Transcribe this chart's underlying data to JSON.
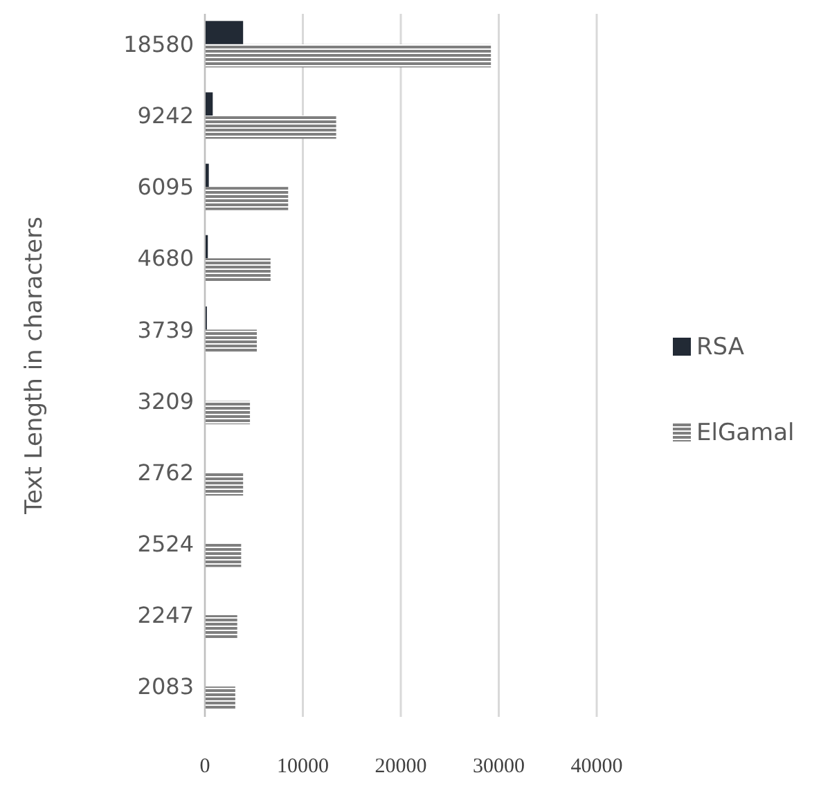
{
  "chart_data": {
    "type": "bar",
    "orientation": "horizontal",
    "ylabel": "Text Length in characters",
    "categories": [
      "18580",
      "9242",
      "6095",
      "4680",
      "3739",
      "3209",
      "2762",
      "2524",
      "2247",
      "2083"
    ],
    "series": [
      {
        "name": "RSA",
        "color": "#222a35",
        "values": [
          3900,
          800,
          400,
          300,
          200,
          null,
          null,
          null,
          null,
          null
        ]
      },
      {
        "name": "ElGamal",
        "color": "#7f7f7f",
        "values": [
          29200,
          13400,
          8500,
          6700,
          5300,
          4600,
          3900,
          3700,
          3300,
          3100
        ]
      }
    ],
    "xlim": [
      0,
      40000
    ],
    "xticks": [
      0,
      10000,
      20000,
      30000,
      40000
    ],
    "grid": "x",
    "legend": "right"
  }
}
